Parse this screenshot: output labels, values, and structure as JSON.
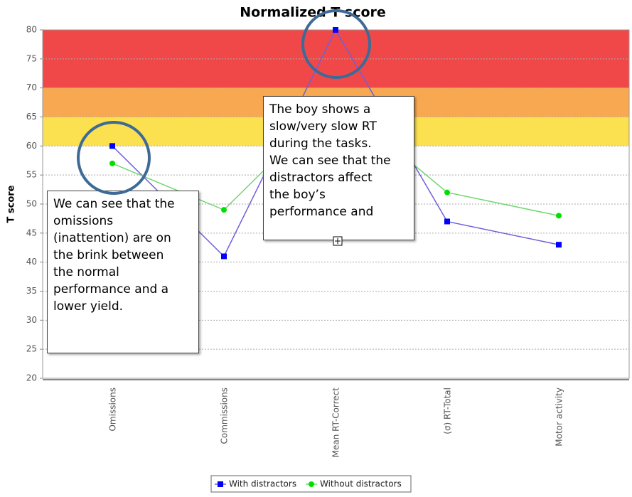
{
  "chart_data": {
    "type": "line",
    "title": "Normalized T score",
    "y_label": "T score",
    "categories": [
      "Omissions",
      "Commissions",
      "Mean RT-Correct",
      "(σ) RT-Total",
      "Motor activity"
    ],
    "series": [
      {
        "name": "With distractors",
        "color": "#0000ff",
        "line_color": "#7060d8",
        "values": [
          60,
          41,
          80,
          47,
          43
        ]
      },
      {
        "name": "Without distractors",
        "color": "#00e000",
        "line_color": "#70d870",
        "values": [
          57,
          49,
          68,
          52,
          48
        ]
      }
    ],
    "ylim": [
      20,
      80
    ],
    "yticks": [
      20,
      25,
      30,
      35,
      40,
      45,
      50,
      55,
      60,
      65,
      70,
      75,
      80
    ],
    "grid": true,
    "bands": [
      {
        "from": 70,
        "to": 80,
        "color": "#f04848"
      },
      {
        "from": 65,
        "to": 70,
        "color": "#f8a850"
      },
      {
        "from": 60,
        "to": 65,
        "color": "#fbe050"
      }
    ],
    "legend": "bottom",
    "annotations": [
      {
        "lines": [
          "We can see that the",
          "omissions",
          "(inattention) are on",
          "the brink between",
          "the normal",
          "performance and a",
          "lower yield."
        ]
      },
      {
        "lines": [
          "The boy shows a",
          "slow/very slow RT",
          "during the tasks.",
          "We can see that the",
          "distractors affect",
          "the boy’s",
          "performance and"
        ]
      }
    ]
  }
}
